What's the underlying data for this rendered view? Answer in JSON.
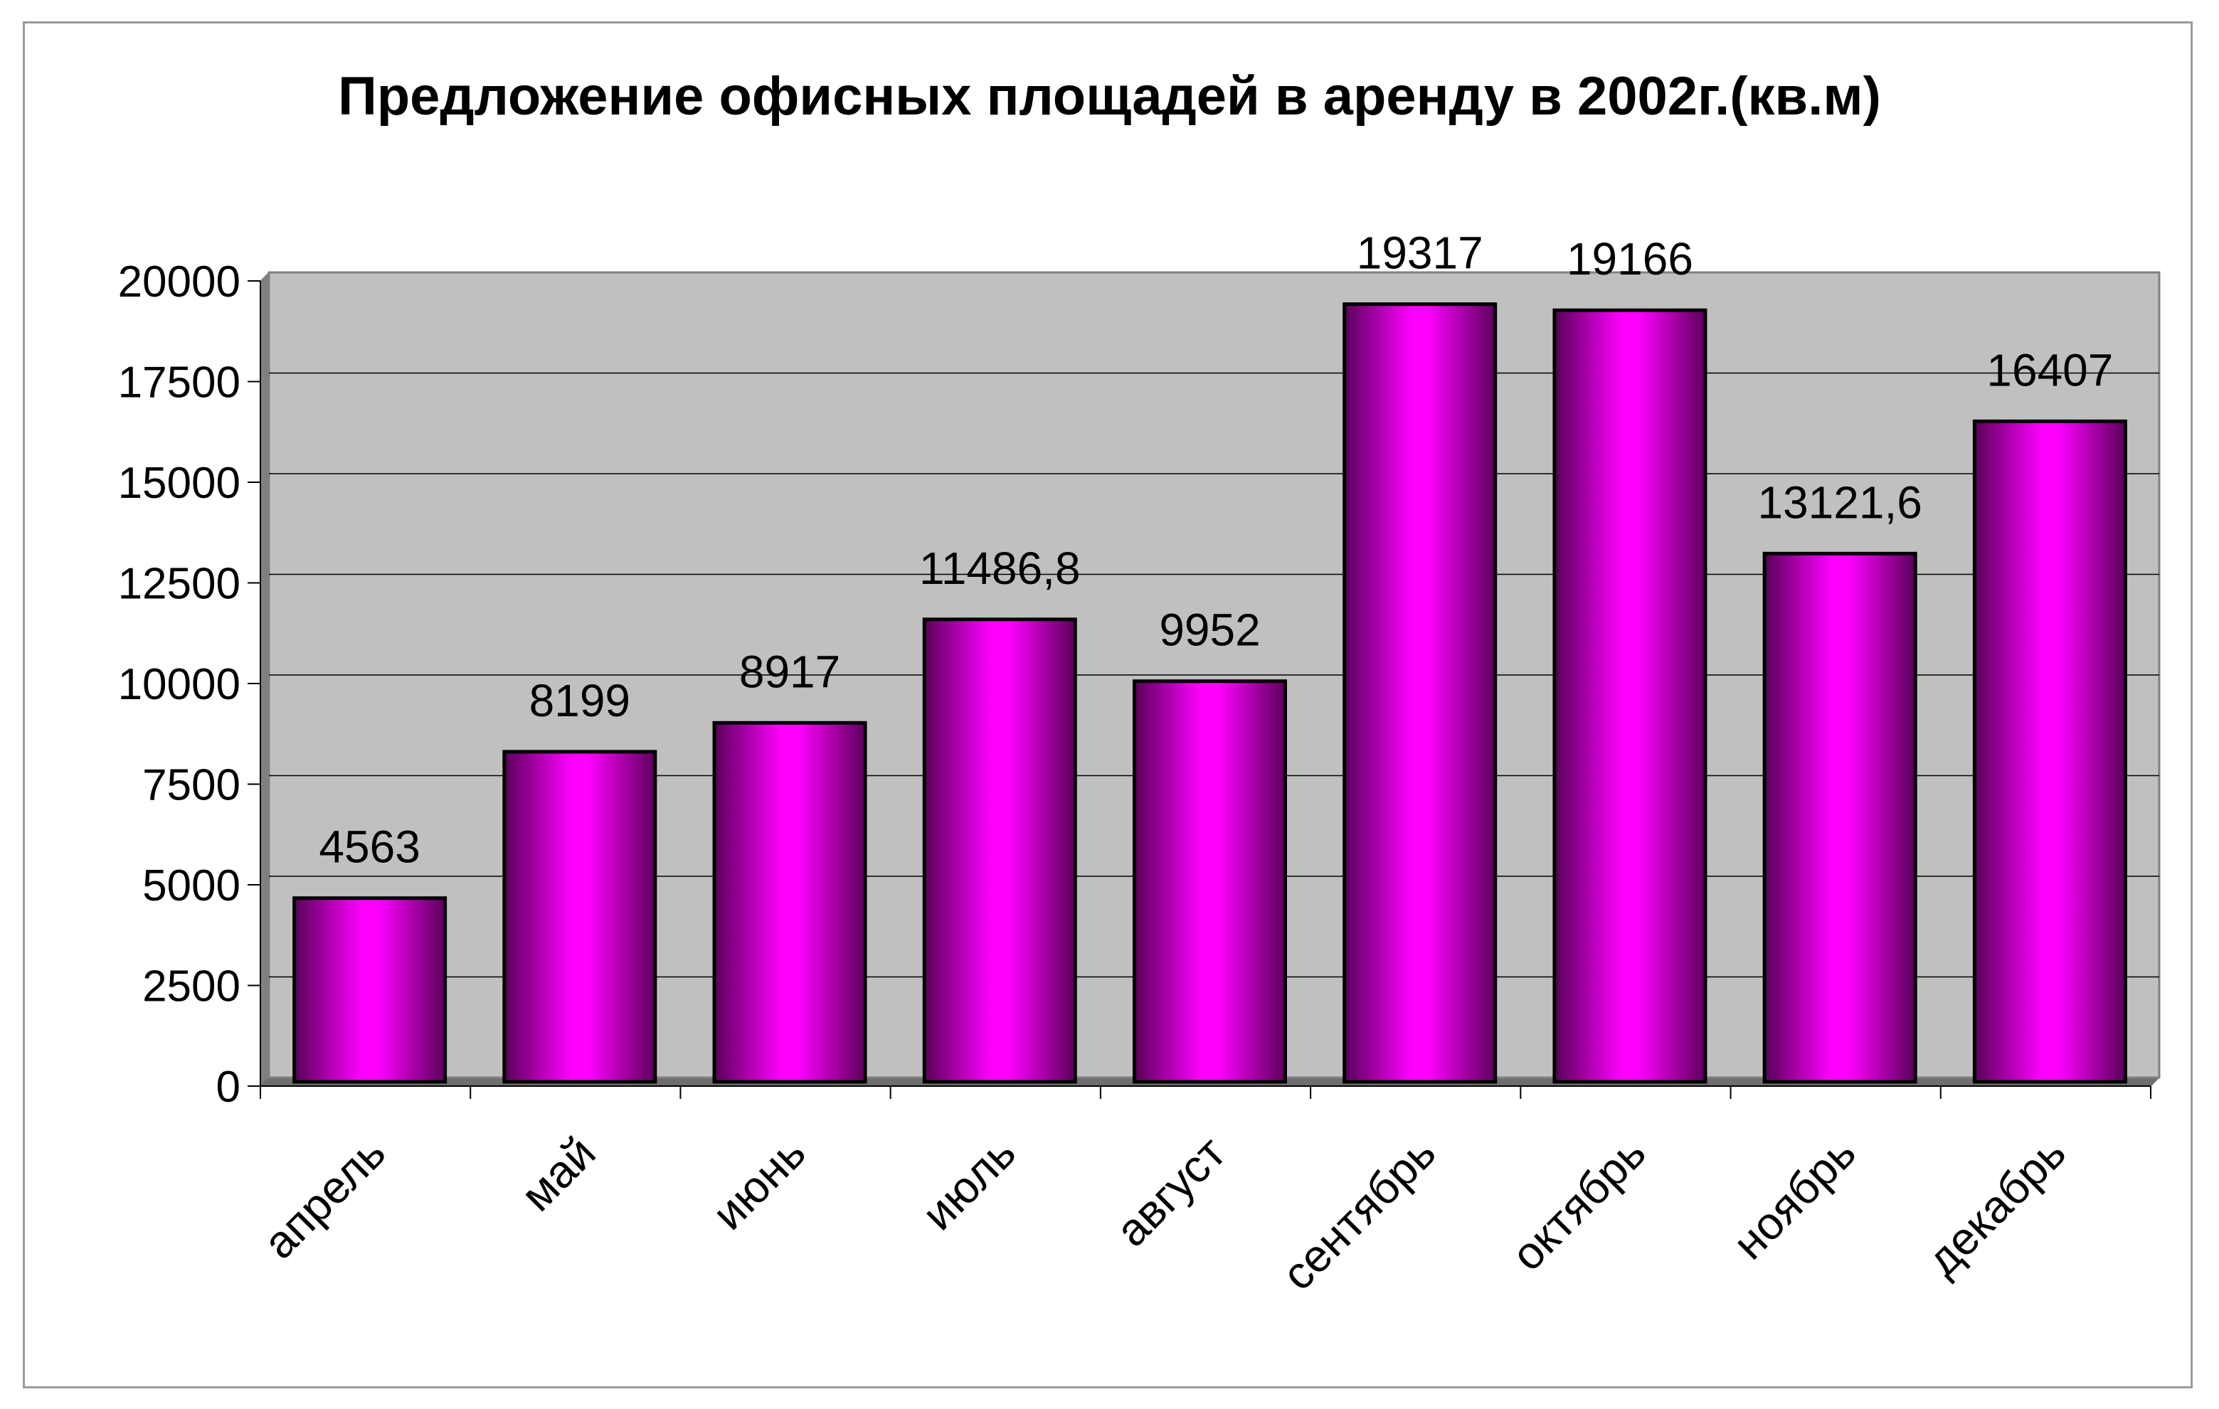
{
  "chart_data": {
    "type": "bar",
    "title": "Предложение офисных площадей в аренду в 2002г.(кв.м)",
    "categories": [
      "апрель",
      "май",
      "июнь",
      "июль",
      "август",
      "сентябрь",
      "октябрь",
      "ноябрь",
      "декабрь"
    ],
    "values": [
      4563,
      8199,
      8917,
      11486.8,
      9952,
      19317,
      19166,
      13121.6,
      16407
    ],
    "data_labels": [
      "4563",
      "8199",
      "8917",
      "11486,8",
      "9952",
      "19317",
      "19166",
      "13121,6",
      "16407"
    ],
    "y_ticks": [
      "0",
      "2500",
      "5000",
      "7500",
      "10000",
      "12500",
      "15000",
      "17500",
      "20000"
    ],
    "ylim": [
      0,
      20000
    ],
    "xlabel": "",
    "ylabel": "",
    "grid": true,
    "legend": "none",
    "colors": {
      "bar_center": "#ff00ff",
      "bar_edge": "#5a005a",
      "plot_background": "#c0c0c0",
      "gridline": "#000000"
    }
  }
}
